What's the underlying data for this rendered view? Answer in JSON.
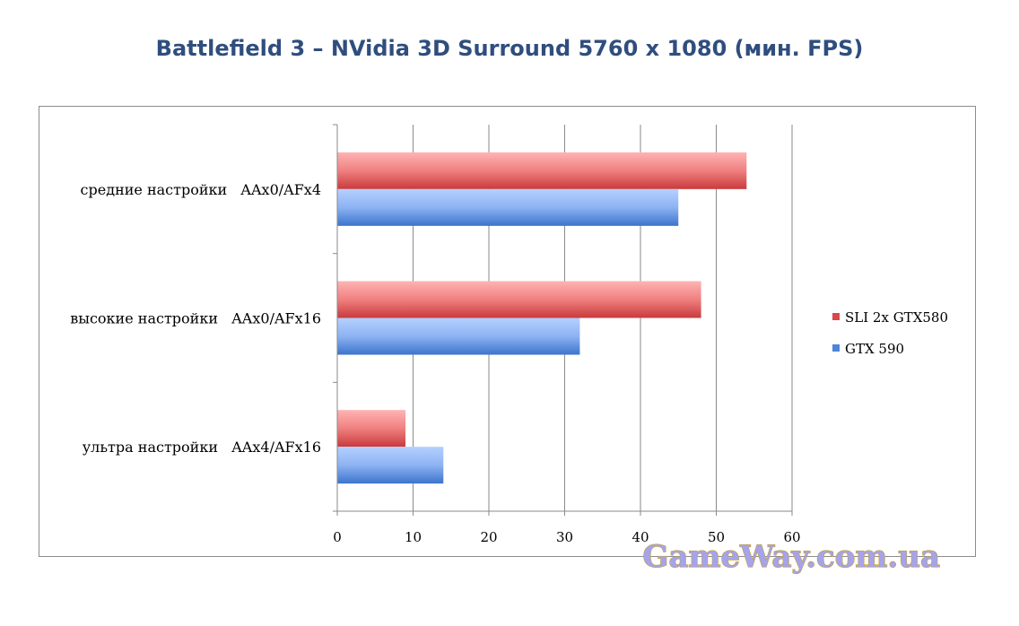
{
  "chart_data": {
    "type": "bar",
    "orientation": "horizontal",
    "title": "Battlefield 3 – NVidia 3D Surround 5760 x 1080 (мин. FPS)",
    "categories": [
      "средние настройки   AAx0/AFx4",
      "высокие настройки   AAx0/AFx16",
      "ультра настройки   AAx4/AFx16"
    ],
    "series": [
      {
        "name": "SLI 2x GTX580",
        "values": [
          54,
          48,
          9
        ],
        "color": "#d9494b"
      },
      {
        "name": "GTX 590",
        "values": [
          45,
          32,
          14
        ],
        "color": "#4f86d6"
      }
    ],
    "xlim": [
      0,
      60
    ],
    "xticks": [
      "0",
      "10",
      "20",
      "30",
      "40",
      "50",
      "60"
    ],
    "grid": true,
    "legend_position": "right"
  },
  "watermark": "GameWay.com.ua"
}
